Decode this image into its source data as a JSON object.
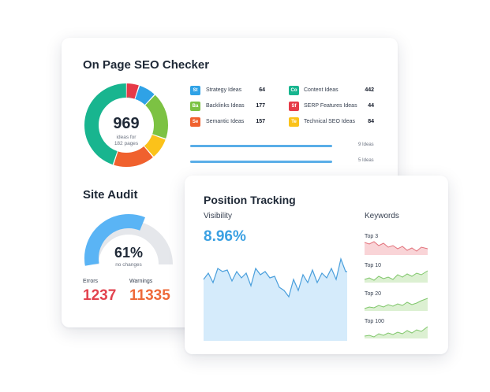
{
  "seo_checker": {
    "title": "On Page SEO Checker",
    "donut_value": "969",
    "donut_caption_1": "ideas for",
    "donut_caption_2": "182 pages",
    "ideas": [
      {
        "tag": "St",
        "color": "#2fa2e6",
        "label": "Strategy Ideas",
        "count": "64"
      },
      {
        "tag": "Ba",
        "color": "#7cc243",
        "label": "Backlinks Ideas",
        "count": "177"
      },
      {
        "tag": "Se",
        "color": "#f0612e",
        "label": "Semantic Ideas",
        "count": "157"
      },
      {
        "tag": "Co",
        "color": "#18b58f",
        "label": "Content Ideas",
        "count": "442"
      },
      {
        "tag": "Sf",
        "color": "#e63a48",
        "label": "SERP Features Ideas",
        "count": "44"
      },
      {
        "tag": "Te",
        "color": "#fbc21a",
        "label": "Technical SEO Ideas",
        "count": "84"
      }
    ],
    "bars": [
      {
        "label": "9 Ideas"
      },
      {
        "label": "5 Ideas"
      }
    ]
  },
  "site_audit": {
    "title": "Site Audit",
    "gauge_value": "61%",
    "gauge_caption": "no changes",
    "gauge_fraction": 0.61,
    "errors_label": "Errors",
    "errors_value": "1237",
    "warnings_label": "Warnings",
    "warnings_value": "11335"
  },
  "position_tracking": {
    "title": "Position Tracking",
    "visibility_label": "Visibility",
    "visibility_value": "8.96%",
    "keywords_label": "Keywords",
    "keywords": [
      {
        "label": "Top 3"
      },
      {
        "label": "Top 10"
      },
      {
        "label": "Top 20"
      },
      {
        "label": "Top 100"
      }
    ]
  },
  "colors": {
    "blue": "#3aa0e2",
    "red": "#e2434f",
    "orange": "#ee6a3a",
    "green_line": "#7fc66a",
    "red_line": "#e2727c"
  }
}
